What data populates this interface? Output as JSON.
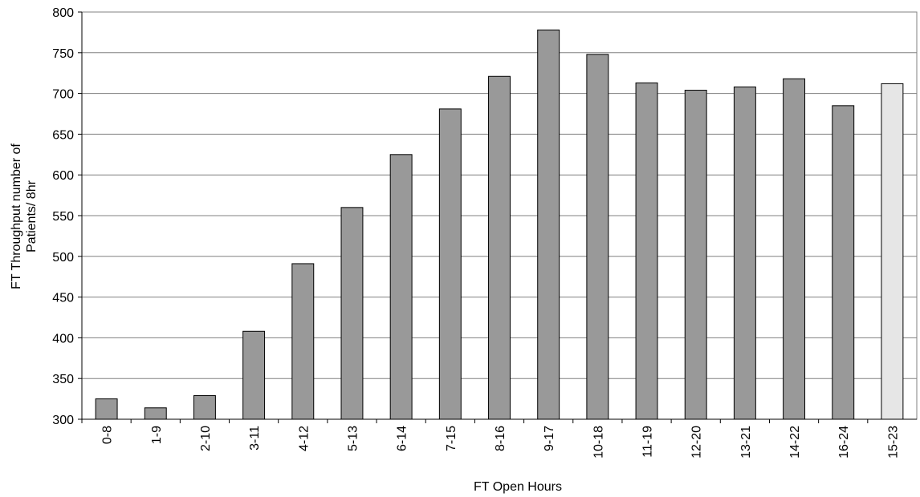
{
  "chart_data": {
    "type": "bar",
    "x_label": "FT Open Hours",
    "y_label": [
      "FT Throughput number of",
      "Patients/ 8hr"
    ],
    "categories": [
      "0-8",
      "1-9",
      "2-10",
      "3-11",
      "4-12",
      "5-13",
      "6-14",
      "7-15",
      "8-16",
      "9-17",
      "10-18",
      "11-19",
      "12-20",
      "13-21",
      "14-22",
      "16-24",
      "15-23"
    ],
    "values": [
      325,
      314,
      329,
      408,
      491,
      560,
      625,
      681,
      721,
      778,
      748,
      713,
      704,
      708,
      718,
      685,
      712
    ],
    "colors": [
      "#999999",
      "#999999",
      "#999999",
      "#999999",
      "#999999",
      "#999999",
      "#999999",
      "#999999",
      "#999999",
      "#999999",
      "#999999",
      "#999999",
      "#999999",
      "#999999",
      "#999999",
      "#999999",
      "#e6e6e6"
    ],
    "ylim": [
      300,
      800
    ],
    "yticks": [
      300,
      350,
      400,
      450,
      500,
      550,
      600,
      650,
      700,
      750,
      800
    ],
    "grid": true
  }
}
